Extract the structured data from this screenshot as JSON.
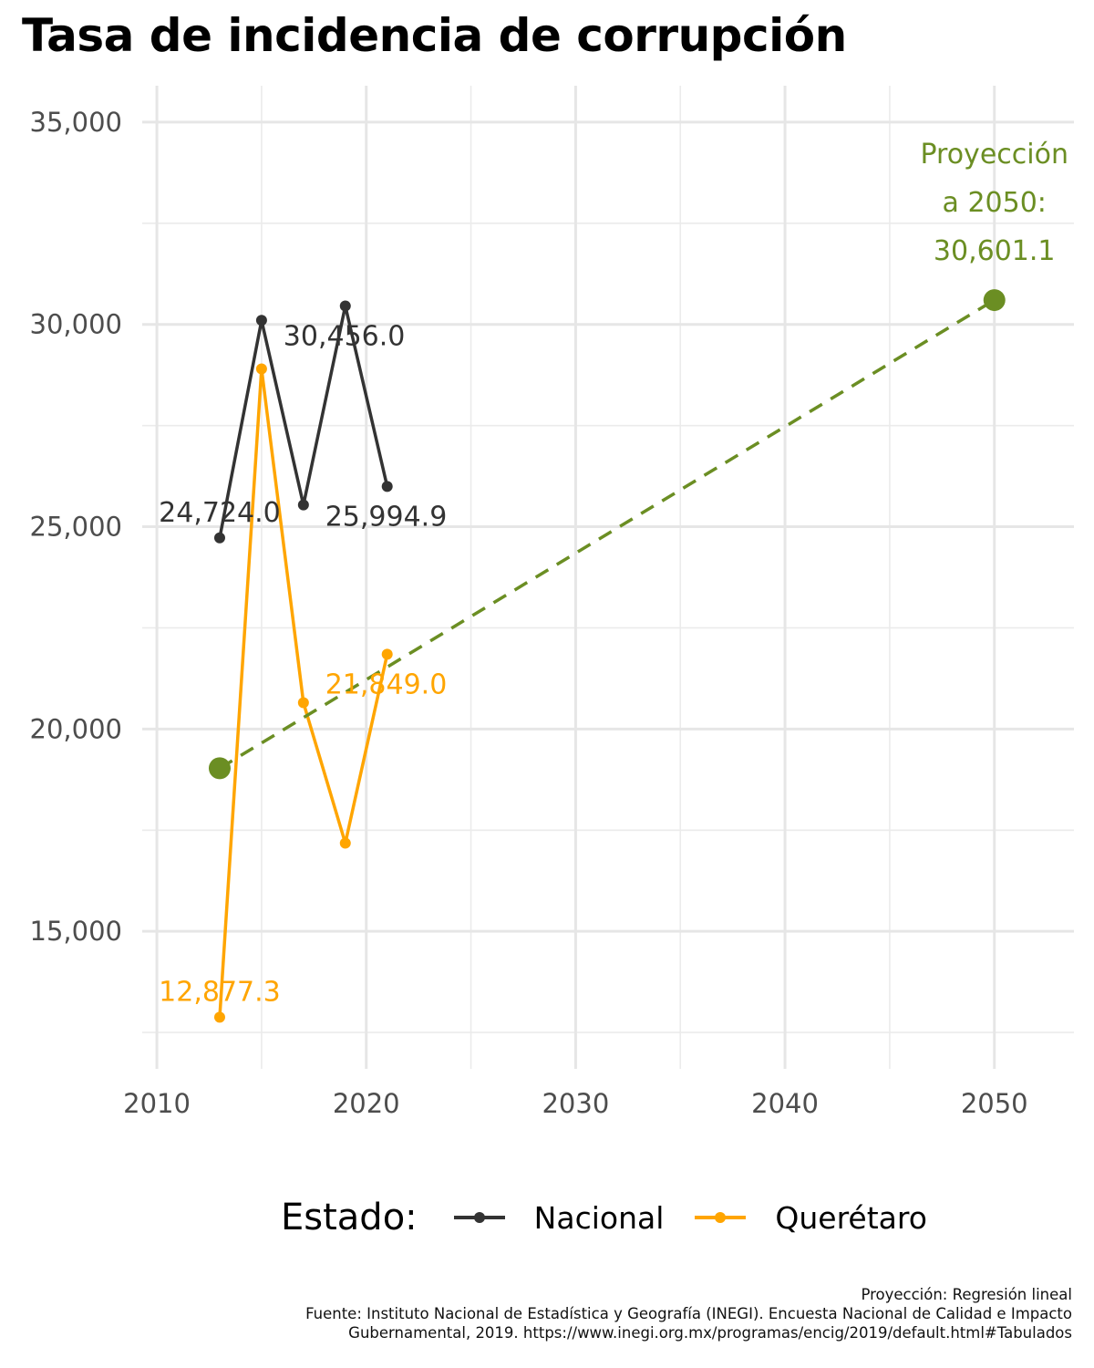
{
  "title": "Tasa de incidencia de corrupción",
  "legend": {
    "title": "Estado:",
    "items": [
      {
        "label": "Nacional",
        "color": "#333333"
      },
      {
        "label": "Querétaro",
        "color": "#FFA500"
      }
    ]
  },
  "caption": {
    "line1": "Proyección: Regresión lineal",
    "line2": "Fuente: Instituto Nacional de Estadística y Geografía (INEGI). Encuesta Nacional de Calidad e Impacto",
    "line3": "Gubernamental, 2019. https://www.inegi.org.mx/programas/encig/2019/default.html#Tabulados"
  },
  "chart_data": {
    "type": "line",
    "title": "Tasa de incidencia de corrupción",
    "xlabel": "",
    "ylabel": "",
    "xlim": [
      2009.3,
      2053.8
    ],
    "ylim": [
      11600,
      35900
    ],
    "x_ticks": [
      2010,
      2020,
      2030,
      2040,
      2050
    ],
    "x_tick_labels": [
      "2010",
      "2020",
      "2030",
      "2040",
      "2050"
    ],
    "y_ticks": [
      15000,
      20000,
      25000,
      30000,
      35000
    ],
    "y_tick_labels": [
      "15,000",
      "20,000",
      "25,000",
      "30,000",
      "35,000"
    ],
    "grid": true,
    "legend_position": "bottom",
    "series": [
      {
        "name": "Nacional",
        "color": "#333333",
        "x": [
          2013,
          2015,
          2017,
          2019,
          2021
        ],
        "values": [
          24724.0,
          30100.0,
          25540.0,
          30456.0,
          25994.9
        ],
        "labels": [
          {
            "index": 0,
            "text": "24,724.0"
          },
          {
            "index": 3,
            "text": "30,456.0"
          },
          {
            "index": 4,
            "text": "25,994.9"
          }
        ]
      },
      {
        "name": "Querétaro",
        "color": "#FFA500",
        "x": [
          2013,
          2015,
          2017,
          2019,
          2021
        ],
        "values": [
          12877.3,
          28900.0,
          20650.0,
          17180.0,
          21849.0
        ],
        "labels": [
          {
            "index": 0,
            "text": "12,877.3"
          },
          {
            "index": 4,
            "text": "21,849.0"
          }
        ]
      }
    ],
    "projection": {
      "color": "#6B8E23",
      "x": [
        2013,
        2050
      ],
      "values": [
        19030,
        30601.1
      ],
      "annotation": [
        "Proyección",
        "a 2050:",
        "30,601.1"
      ]
    }
  }
}
